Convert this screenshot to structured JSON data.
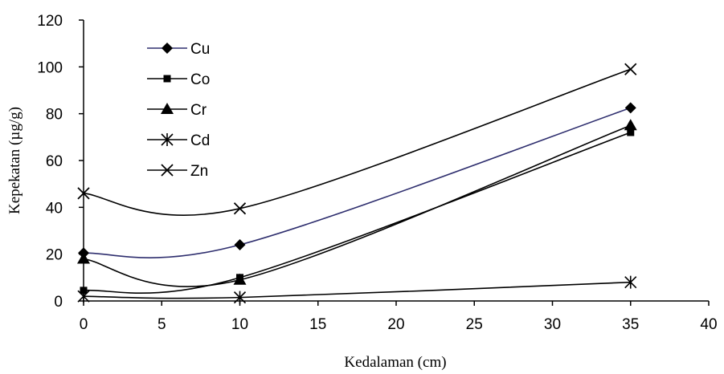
{
  "chart_data": {
    "type": "line",
    "title": "",
    "xlabel": "Kedalaman (cm)",
    "ylabel": "Kepekatan (µg/g)",
    "xlim": [
      0,
      40
    ],
    "ylim": [
      0,
      120
    ],
    "xticks": [
      0,
      5,
      10,
      15,
      20,
      25,
      30,
      35,
      40
    ],
    "yticks": [
      0,
      20,
      40,
      60,
      80,
      100,
      120
    ],
    "x": [
      0,
      10,
      35
    ],
    "grid": false,
    "legend_position": "top-left",
    "series": [
      {
        "name": "Cu",
        "values": [
          20.5,
          24,
          82.5
        ],
        "color": "#2e2e6e",
        "marker": "diamond"
      },
      {
        "name": "Co",
        "values": [
          4.5,
          10,
          72
        ],
        "color": "#000000",
        "marker": "square"
      },
      {
        "name": "Cr",
        "values": [
          18,
          9,
          75
        ],
        "color": "#000000",
        "marker": "triangle"
      },
      {
        "name": "Cd",
        "values": [
          2,
          1.5,
          8
        ],
        "color": "#000000",
        "marker": "star"
      },
      {
        "name": "Zn",
        "values": [
          46,
          39.5,
          99
        ],
        "color": "#000000",
        "marker": "x"
      }
    ]
  }
}
